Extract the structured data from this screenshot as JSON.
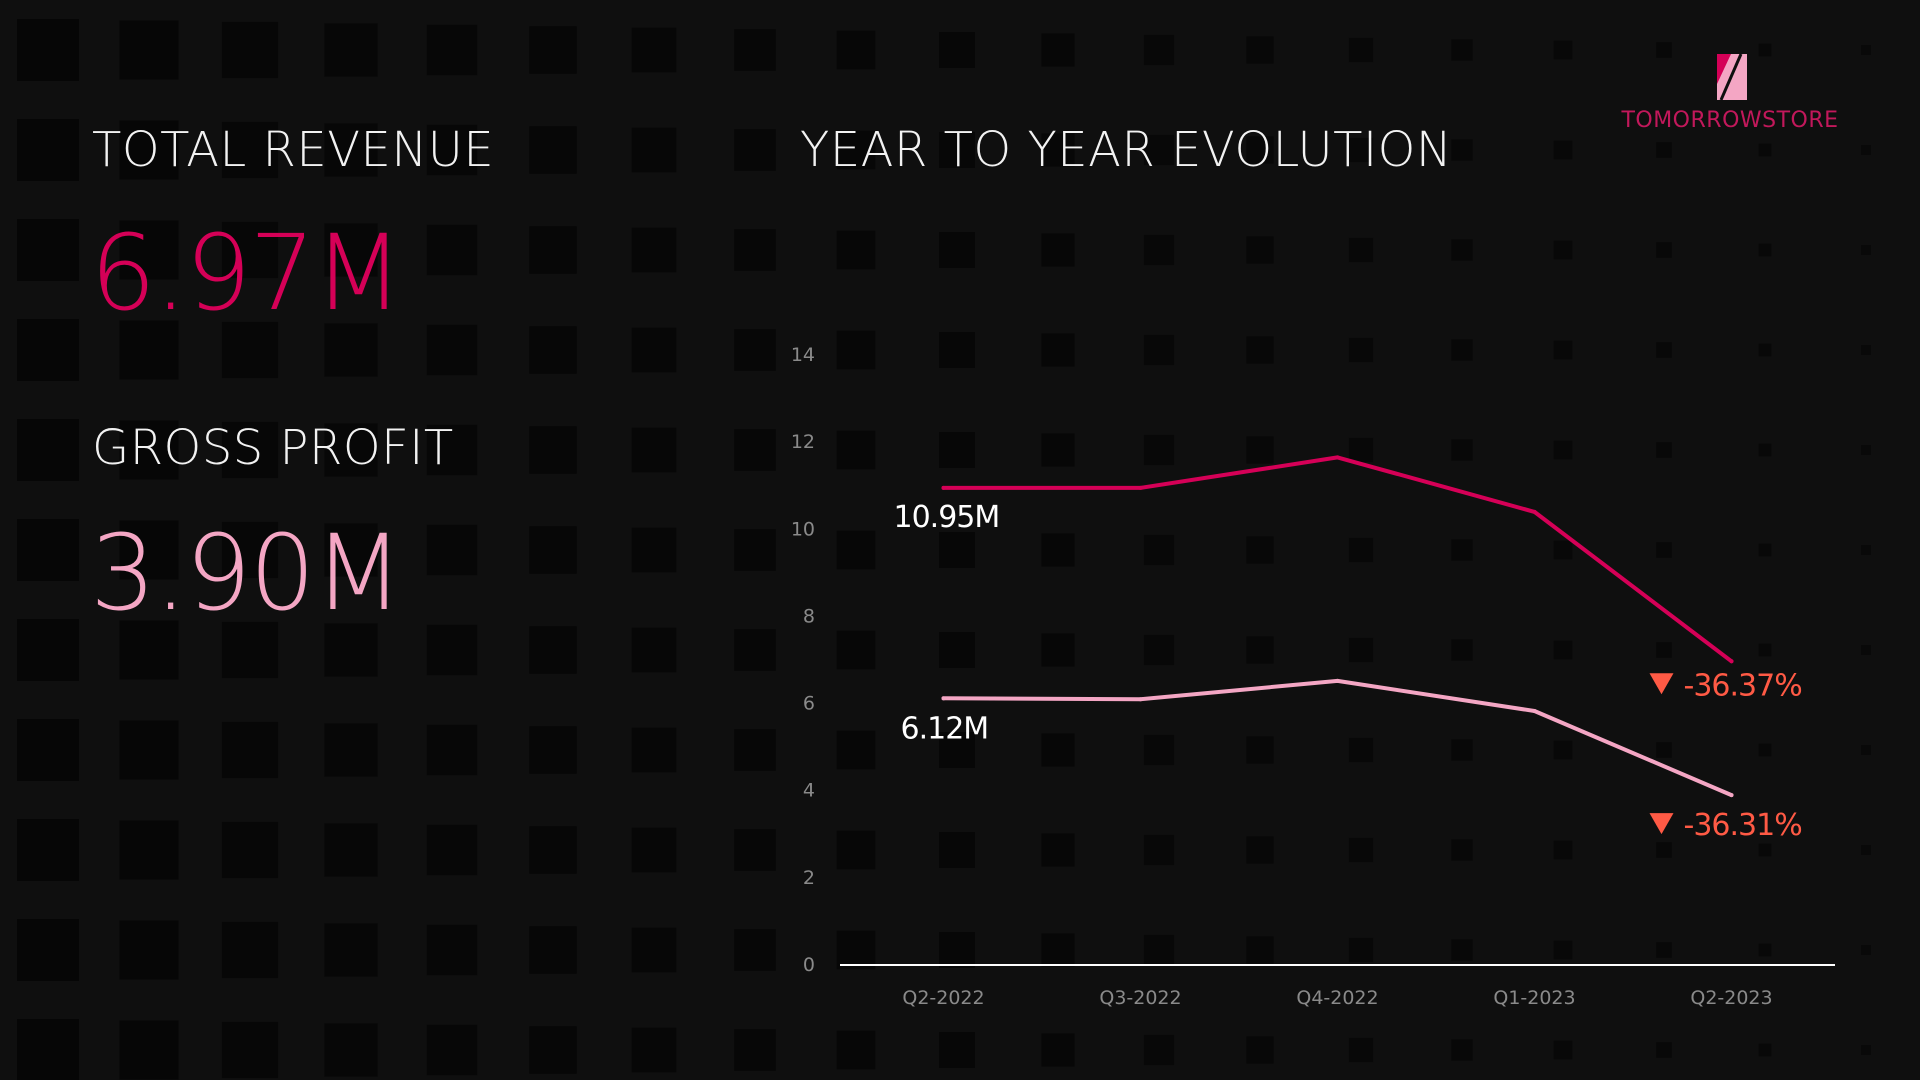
{
  "brand": {
    "name": "TOMORROWSTORE",
    "colors": {
      "primary": "#d50057",
      "secondary": "#f4a6c4",
      "negative": "#ff5a45"
    }
  },
  "kpis": {
    "revenue": {
      "label": "TOTAL REVENUE",
      "value": "6.97M",
      "color": "#d50057"
    },
    "gross_profit": {
      "label": "GROSS PROFIT",
      "value": "3.90M",
      "color": "#f4a6c4"
    }
  },
  "chart_title": "YEAR TO YEAR EVOLUTION",
  "chart_data": {
    "type": "line",
    "title": "YEAR TO YEAR EVOLUTION",
    "categories": [
      "Q2-2022",
      "Q3-2022",
      "Q4-2022",
      "Q1-2023",
      "Q2-2023"
    ],
    "y_ticks": [
      0,
      2,
      4,
      6,
      8,
      10,
      12,
      14
    ],
    "ylim": [
      0,
      14
    ],
    "grid": false,
    "series": [
      {
        "values": [
          10.95,
          10.95,
          11.65,
          10.4,
          6.97
        ],
        "color": "#d50057",
        "start_label": "10.95M",
        "end_label": "-36.37%"
      },
      {
        "values": [
          6.12,
          6.1,
          6.52,
          5.83,
          3.9
        ],
        "color": "#f4a6c4",
        "start_label": "6.12M",
        "end_label": "-36.31%"
      }
    ]
  }
}
